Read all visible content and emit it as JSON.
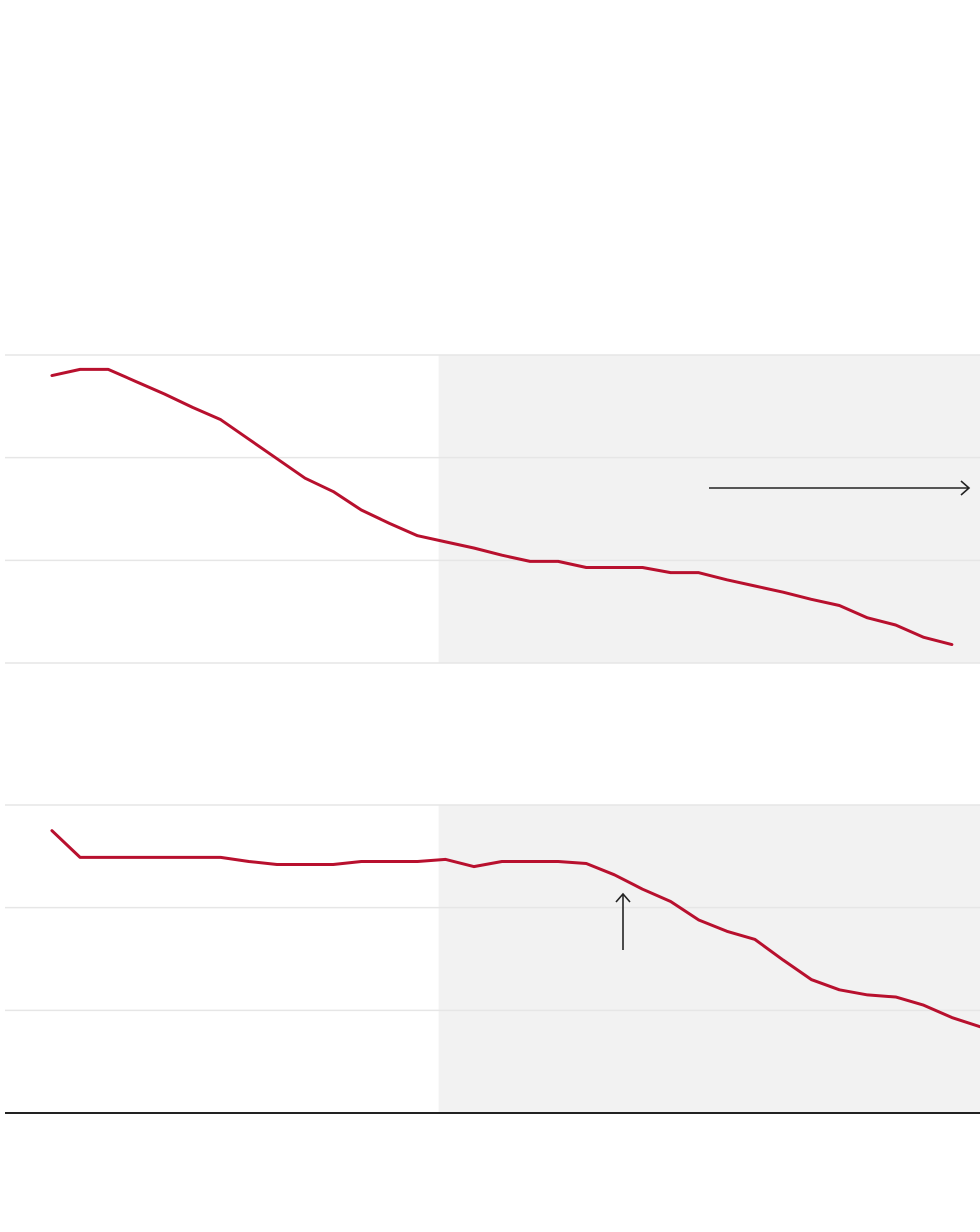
{
  "chart_data": [
    {
      "type": "line",
      "x": [
        0,
        1,
        2,
        3,
        4,
        5,
        6,
        7,
        8,
        9,
        10,
        11,
        12,
        13,
        14,
        15,
        16,
        17,
        18,
        19,
        20,
        21,
        22,
        23,
        24,
        25,
        26,
        27,
        28,
        29,
        30,
        31,
        32
      ],
      "xlim": [
        -1.67,
        33
      ],
      "ylim": [
        0,
        3
      ],
      "yticks": [
        0,
        1,
        2,
        3
      ],
      "grid": true,
      "highlight_from": 13.75,
      "series": [
        {
          "color": "#b8102e",
          "values": [
            2.8,
            2.86,
            2.86,
            2.74,
            2.62,
            2.49,
            2.37,
            2.18,
            1.99,
            1.8,
            1.67,
            1.49,
            1.36,
            1.24,
            1.18,
            1.12,
            1.05,
            0.99,
            0.99,
            0.93,
            0.93,
            0.93,
            0.88,
            0.88,
            0.81,
            0.75,
            0.69,
            0.62,
            0.56,
            0.44,
            0.37,
            0.25,
            0.18
          ]
        }
      ]
    },
    {
      "type": "line",
      "x": [
        0,
        1,
        2,
        3,
        4,
        5,
        6,
        7,
        8,
        9,
        10,
        11,
        12,
        13,
        14,
        15,
        16,
        17,
        18,
        19,
        20,
        21,
        22,
        23,
        24,
        25,
        26,
        27,
        28,
        29,
        30,
        31,
        32,
        33
      ],
      "xlim": [
        -1.67,
        33
      ],
      "ylim": [
        0,
        3
      ],
      "yticks": [
        0,
        1,
        2,
        3
      ],
      "grid": true,
      "x_axis": true,
      "highlight_from": 13.75,
      "series": [
        {
          "color": "#b8102e",
          "values": [
            2.75,
            2.49,
            2.49,
            2.49,
            2.49,
            2.49,
            2.49,
            2.45,
            2.42,
            2.42,
            2.42,
            2.45,
            2.45,
            2.45,
            2.47,
            2.4,
            2.45,
            2.45,
            2.45,
            2.43,
            2.32,
            2.18,
            2.06,
            1.88,
            1.77,
            1.69,
            1.49,
            1.3,
            1.2,
            1.15,
            1.13,
            1.05,
            0.93,
            0.84
          ]
        }
      ]
    }
  ]
}
